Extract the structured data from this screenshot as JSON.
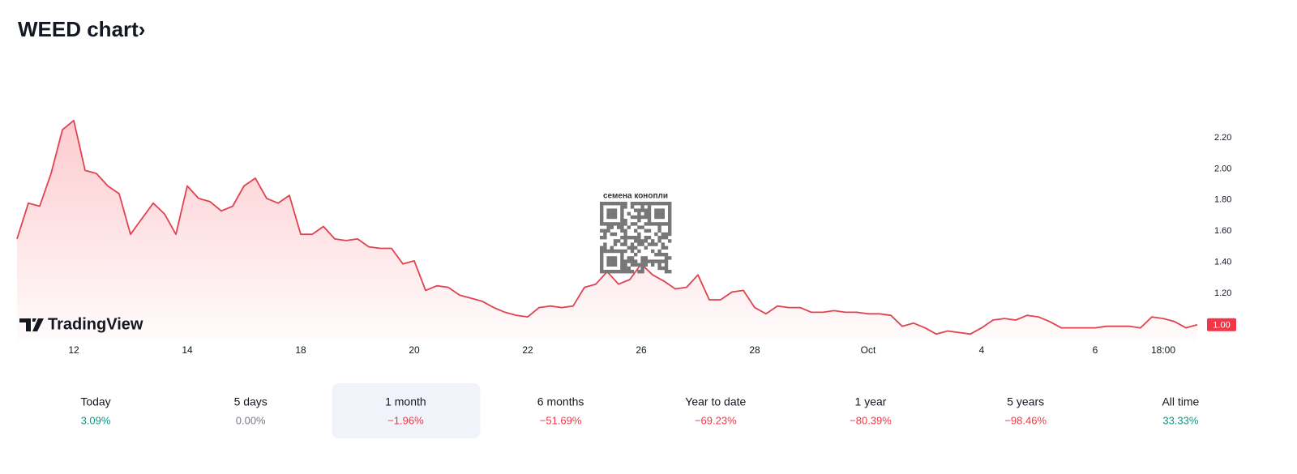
{
  "chart_data": {
    "type": "line",
    "title": "WEED chart›",
    "watermark": "семена конопли",
    "logo": "TradingView",
    "color": "#e0434f",
    "categories": [
      null,
      null,
      null,
      null,
      null,
      "12",
      null,
      null,
      null,
      null,
      null,
      null,
      null,
      null,
      null,
      "14",
      null,
      null,
      null,
      null,
      null,
      null,
      null,
      null,
      null,
      "18",
      null,
      null,
      null,
      null,
      null,
      null,
      null,
      null,
      null,
      "20",
      null,
      null,
      null,
      null,
      null,
      null,
      null,
      null,
      null,
      "22",
      null,
      null,
      null,
      null,
      null,
      null,
      null,
      null,
      null,
      "26",
      null,
      null,
      null,
      null,
      null,
      null,
      null,
      null,
      null,
      "28",
      null,
      null,
      null,
      null,
      null,
      null,
      null,
      null,
      null,
      "Oct",
      null,
      null,
      null,
      null,
      null,
      null,
      null,
      null,
      null,
      "4",
      null,
      null,
      null,
      null,
      null,
      null,
      null,
      null,
      null,
      "6",
      null,
      null,
      null,
      null,
      null,
      "18:00",
      null,
      null,
      null
    ],
    "values": [
      1.55,
      1.78,
      1.76,
      1.97,
      2.25,
      2.31,
      1.99,
      1.97,
      1.89,
      1.84,
      1.58,
      1.68,
      1.78,
      1.71,
      1.58,
      1.89,
      1.81,
      1.79,
      1.73,
      1.76,
      1.89,
      1.94,
      1.81,
      1.78,
      1.83,
      1.58,
      1.58,
      1.63,
      1.55,
      1.54,
      1.55,
      1.5,
      1.49,
      1.49,
      1.39,
      1.41,
      1.22,
      1.25,
      1.24,
      1.19,
      1.17,
      1.15,
      1.11,
      1.08,
      1.06,
      1.05,
      1.11,
      1.12,
      1.11,
      1.12,
      1.24,
      1.26,
      1.34,
      1.26,
      1.29,
      1.39,
      1.32,
      1.28,
      1.23,
      1.24,
      1.32,
      1.16,
      1.16,
      1.21,
      1.22,
      1.11,
      1.07,
      1.12,
      1.11,
      1.11,
      1.08,
      1.08,
      1.09,
      1.08,
      1.08,
      1.07,
      1.07,
      1.06,
      0.99,
      1.01,
      0.98,
      0.94,
      0.96,
      0.95,
      0.94,
      0.98,
      1.03,
      1.04,
      1.03,
      1.06,
      1.05,
      1.02,
      0.98,
      0.98,
      0.98,
      0.98,
      0.99,
      0.99,
      0.99,
      0.98,
      1.05,
      1.04,
      1.02,
      0.98,
      1.0
    ],
    "last_price": {
      "value": 1.0,
      "label": "1.00"
    },
    "ylim": [
      0.9,
      2.35
    ],
    "yticks": [
      {
        "value": 1.2,
        "label": "1.20"
      },
      {
        "value": 1.4,
        "label": "1.40"
      },
      {
        "value": 1.6,
        "label": "1.60"
      },
      {
        "value": 1.8,
        "label": "1.80"
      },
      {
        "value": 2.0,
        "label": "2.00"
      },
      {
        "value": 2.2,
        "label": "2.20"
      }
    ],
    "grid": false
  },
  "performance": [
    {
      "label": "Today",
      "change": "3.09%",
      "color": "#089981"
    },
    {
      "label": "5 days",
      "change": "0.00%",
      "color": "#787b86"
    },
    {
      "label": "1 month",
      "change": "−1.96%",
      "color": "#f23645",
      "selected": true
    },
    {
      "label": "6 months",
      "change": "−51.69%",
      "color": "#f23645"
    },
    {
      "label": "Year to date",
      "change": "−69.23%",
      "color": "#f23645"
    },
    {
      "label": "1 year",
      "change": "−80.39%",
      "color": "#f23645"
    },
    {
      "label": "5 years",
      "change": "−98.46%",
      "color": "#f23645"
    },
    {
      "label": "All time",
      "change": "33.33%",
      "color": "#089981"
    }
  ]
}
